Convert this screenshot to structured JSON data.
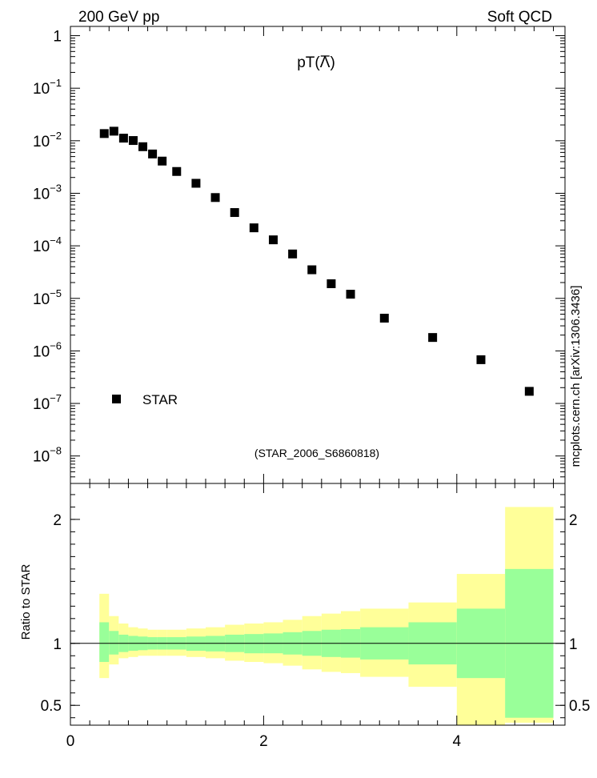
{
  "header": {
    "left": "200 GeV pp",
    "right": "Soft QCD"
  },
  "side_label": "mcplots.cern.ch [arXiv:1306.3436]",
  "chart_data": [
    {
      "type": "scatter",
      "title_prefix": "pT(",
      "title_symbol": "Λ",
      "title_suffix": ")",
      "yscale": "log",
      "xlim": [
        0,
        5.12
      ],
      "ylim": [
        3e-09,
        1.5
      ],
      "y_ticks": [
        {
          "value": 1,
          "label": "1"
        },
        {
          "value": 0.1,
          "label": "10",
          "exp": "−1"
        },
        {
          "value": 0.01,
          "label": "10",
          "exp": "−2"
        },
        {
          "value": 0.001,
          "label": "10",
          "exp": "−3"
        },
        {
          "value": 0.0001,
          "label": "10",
          "exp": "−4"
        },
        {
          "value": 1e-05,
          "label": "10",
          "exp": "−5"
        },
        {
          "value": 1e-06,
          "label": "10",
          "exp": "−6"
        },
        {
          "value": 1e-07,
          "label": "10",
          "exp": "−7"
        },
        {
          "value": 1e-08,
          "label": "10",
          "exp": "−8"
        }
      ],
      "legend": {
        "label": "STAR",
        "position": "bottom-left"
      },
      "annotation": "(STAR_2006_S6860818)",
      "series": [
        {
          "name": "STAR",
          "marker": "square",
          "points": [
            {
              "x": 0.35,
              "y": 0.0137
            },
            {
              "x": 0.45,
              "y": 0.0152
            },
            {
              "x": 0.55,
              "y": 0.0112
            },
            {
              "x": 0.65,
              "y": 0.0101
            },
            {
              "x": 0.75,
              "y": 0.0077
            },
            {
              "x": 0.85,
              "y": 0.0056
            },
            {
              "x": 0.95,
              "y": 0.0041
            },
            {
              "x": 1.1,
              "y": 0.0026
            },
            {
              "x": 1.3,
              "y": 0.00155
            },
            {
              "x": 1.5,
              "y": 0.00083
            },
            {
              "x": 1.7,
              "y": 0.00043
            },
            {
              "x": 1.9,
              "y": 0.00022
            },
            {
              "x": 2.1,
              "y": 0.00013
            },
            {
              "x": 2.3,
              "y": 7e-05
            },
            {
              "x": 2.5,
              "y": 3.5e-05
            },
            {
              "x": 2.7,
              "y": 1.9e-05
            },
            {
              "x": 2.9,
              "y": 1.2e-05
            },
            {
              "x": 3.25,
              "y": 4.2e-06
            },
            {
              "x": 3.75,
              "y": 1.8e-06
            },
            {
              "x": 4.25,
              "y": 6.8e-07
            },
            {
              "x": 4.75,
              "y": 1.7e-07
            }
          ]
        }
      ]
    },
    {
      "type": "area",
      "ylabel": "Ratio to STAR",
      "xlim": [
        0,
        5.12
      ],
      "ylim": [
        0.34,
        2.29
      ],
      "reference_line": 1,
      "x_ticks": [
        {
          "value": 0,
          "label": "0"
        },
        {
          "value": 2,
          "label": "2"
        },
        {
          "value": 4,
          "label": "4"
        }
      ],
      "y_ticks": [
        {
          "value": 0.5,
          "label": "0.5"
        },
        {
          "value": 1,
          "label": "1"
        },
        {
          "value": 2,
          "label": "2"
        }
      ],
      "bands": [
        {
          "x0": 0.3,
          "x1": 0.4,
          "green": [
            0.85,
            1.17
          ],
          "yellow": [
            0.72,
            1.4
          ]
        },
        {
          "x0": 0.4,
          "x1": 0.5,
          "green": [
            0.91,
            1.1
          ],
          "yellow": [
            0.83,
            1.22
          ]
        },
        {
          "x0": 0.5,
          "x1": 0.6,
          "green": [
            0.93,
            1.07
          ],
          "yellow": [
            0.88,
            1.16
          ]
        },
        {
          "x0": 0.6,
          "x1": 0.7,
          "green": [
            0.94,
            1.06
          ],
          "yellow": [
            0.89,
            1.13
          ]
        },
        {
          "x0": 0.7,
          "x1": 0.8,
          "green": [
            0.945,
            1.055
          ],
          "yellow": [
            0.9,
            1.12
          ]
        },
        {
          "x0": 0.8,
          "x1": 0.9,
          "green": [
            0.95,
            1.05
          ],
          "yellow": [
            0.9,
            1.11
          ]
        },
        {
          "x0": 0.9,
          "x1": 1.0,
          "green": [
            0.95,
            1.05
          ],
          "yellow": [
            0.9,
            1.11
          ]
        },
        {
          "x0": 1.0,
          "x1": 1.2,
          "green": [
            0.95,
            1.05
          ],
          "yellow": [
            0.9,
            1.11
          ]
        },
        {
          "x0": 1.2,
          "x1": 1.4,
          "green": [
            0.94,
            1.055
          ],
          "yellow": [
            0.89,
            1.12
          ]
        },
        {
          "x0": 1.4,
          "x1": 1.6,
          "green": [
            0.935,
            1.06
          ],
          "yellow": [
            0.88,
            1.13
          ]
        },
        {
          "x0": 1.6,
          "x1": 1.8,
          "green": [
            0.93,
            1.07
          ],
          "yellow": [
            0.86,
            1.15
          ]
        },
        {
          "x0": 1.8,
          "x1": 2.0,
          "green": [
            0.92,
            1.075
          ],
          "yellow": [
            0.85,
            1.16
          ]
        },
        {
          "x0": 2.0,
          "x1": 2.2,
          "green": [
            0.92,
            1.08
          ],
          "yellow": [
            0.84,
            1.17
          ]
        },
        {
          "x0": 2.2,
          "x1": 2.4,
          "green": [
            0.91,
            1.09
          ],
          "yellow": [
            0.82,
            1.19
          ]
        },
        {
          "x0": 2.4,
          "x1": 2.6,
          "green": [
            0.9,
            1.1
          ],
          "yellow": [
            0.79,
            1.22
          ]
        },
        {
          "x0": 2.6,
          "x1": 2.8,
          "green": [
            0.89,
            1.11
          ],
          "yellow": [
            0.77,
            1.24
          ]
        },
        {
          "x0": 2.8,
          "x1": 3.0,
          "green": [
            0.885,
            1.115
          ],
          "yellow": [
            0.76,
            1.26
          ]
        },
        {
          "x0": 3.0,
          "x1": 3.5,
          "green": [
            0.87,
            1.13
          ],
          "yellow": [
            0.73,
            1.28
          ]
        },
        {
          "x0": 3.5,
          "x1": 4.0,
          "green": [
            0.83,
            1.17
          ],
          "yellow": [
            0.65,
            1.33
          ]
        },
        {
          "x0": 4.0,
          "x1": 4.5,
          "green": [
            0.72,
            1.28
          ],
          "yellow": [
            0.34,
            1.56
          ]
        },
        {
          "x0": 4.5,
          "x1": 5.0,
          "green": [
            0.4,
            1.6
          ],
          "yellow": [
            0.36,
            2.1
          ]
        }
      ]
    }
  ],
  "colors": {
    "yellow_band": "#ffff99",
    "green_band": "#99ff99",
    "marker": "#000000",
    "annotation": "#999999",
    "side_label": "#777777"
  }
}
